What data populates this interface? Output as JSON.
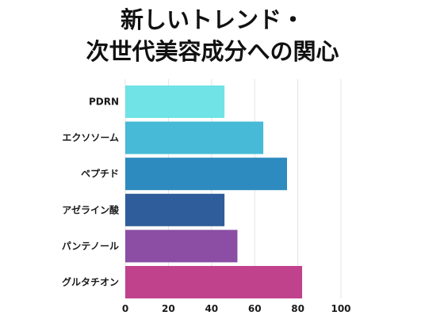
{
  "chart_data": {
    "type": "bar",
    "orientation": "horizontal",
    "title": [
      "新しいトレンド・",
      "次世代美容成分への関心"
    ],
    "categories": [
      "PDRN",
      "エクソソーム",
      "ペプチド",
      "アゼライン酸",
      "パンテノール",
      "グルタチオン"
    ],
    "values": [
      46,
      64,
      75,
      46,
      52,
      82
    ],
    "colors": [
      "#6fe3e6",
      "#46bad6",
      "#2e8bbf",
      "#2f5d9b",
      "#8b4ea4",
      "#c0428c"
    ],
    "xlim": [
      0,
      100
    ],
    "xticks": [
      "0",
      "20",
      "40",
      "60",
      "80",
      "100"
    ],
    "grid": true
  }
}
